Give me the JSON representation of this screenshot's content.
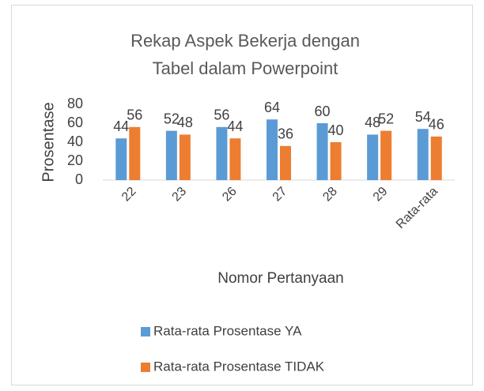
{
  "chart_data": {
    "type": "bar",
    "title": "Rekap Aspek Bekerja dengan Tabel dalam Powerpoint",
    "x_label": "Nomor Pertanyaan",
    "y_label": "Prosentase",
    "categories": [
      "22",
      "23",
      "26",
      "27",
      "28",
      "29",
      "Rata-rata"
    ],
    "series": [
      {
        "name": "Rata-rata Prosentase YA",
        "color": "#5b9bd5",
        "values": [
          44,
          52,
          56,
          64,
          60,
          48,
          54
        ]
      },
      {
        "name": "Rata-rata Prosentase TIDAK",
        "color": "#ed7d31",
        "values": [
          56,
          48,
          44,
          36,
          40,
          52,
          46
        ]
      }
    ],
    "ylim": [
      0,
      80
    ],
    "yticks": [
      0,
      20,
      40,
      60,
      80
    ],
    "grid": false,
    "legend": "bottom",
    "data_labels": true
  }
}
